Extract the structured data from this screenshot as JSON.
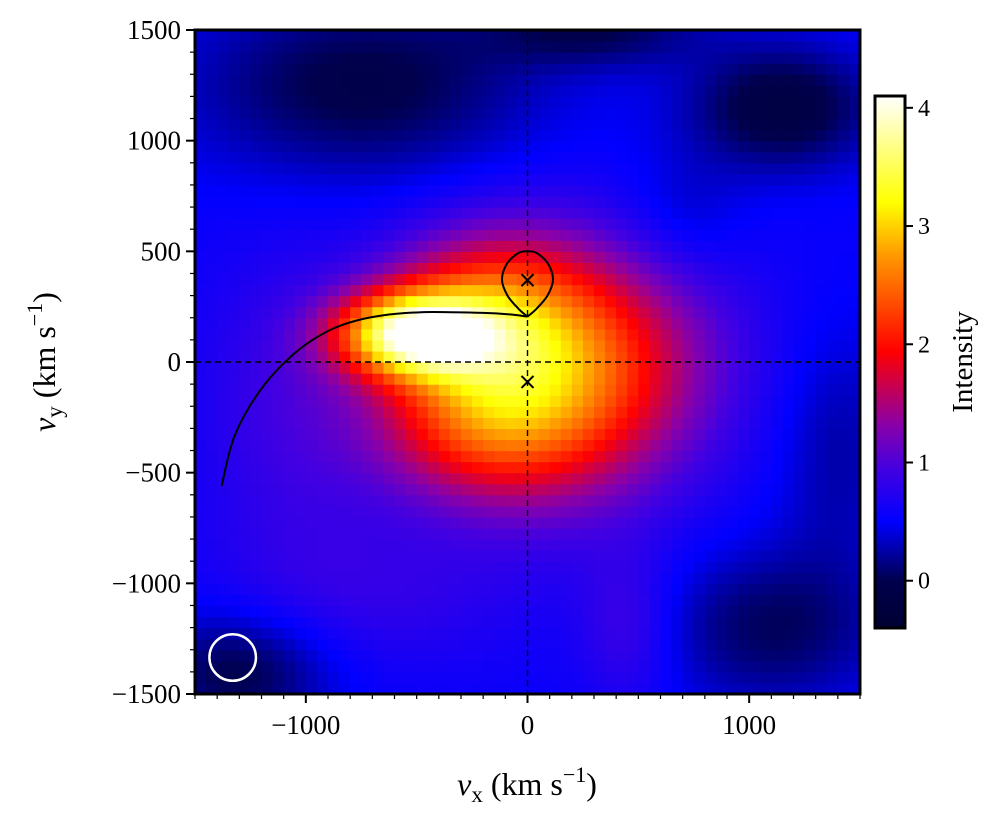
{
  "chart_data": {
    "type": "heatmap",
    "title": "",
    "x_axis": {
      "var": "v",
      "sub": "x",
      "unit": " (km s",
      "exp": "−1",
      "close": ")",
      "range": [
        -1500,
        1500
      ],
      "ticks": [
        -1000,
        0,
        1000
      ],
      "tick_labels": [
        "−1000",
        "0",
        "1000"
      ]
    },
    "y_axis": {
      "var": "v",
      "sub": "y",
      "unit": " (km s",
      "exp": "−1",
      "close": ")",
      "range": [
        -1500,
        1500
      ],
      "ticks": [
        -1500,
        -1000,
        -500,
        0,
        500,
        1000,
        1500
      ],
      "tick_labels": [
        "−1500",
        "−1000",
        "−500",
        "0",
        "500",
        "1000",
        "1500"
      ]
    },
    "colorbar": {
      "label": "Intensity",
      "range": [
        -0.4,
        4.1
      ],
      "ticks": [
        0,
        1,
        2,
        3,
        4
      ],
      "tick_labels": [
        "0",
        "1",
        "2",
        "3",
        "4"
      ],
      "colormap": [
        "#000033",
        "#0000ff",
        "#ff0000",
        "#ffff00",
        "#ffffff"
      ]
    },
    "grid": false,
    "reference_lines": {
      "vx": 0,
      "vy": 0
    },
    "markers": [
      {
        "symbol": "x",
        "vx": 0,
        "vy": 370
      },
      {
        "symbol": "x",
        "vx": 0,
        "vy": -90
      }
    ],
    "beam_circle": {
      "vx": -1330,
      "vy": -1335,
      "radius": 105,
      "color": "#ffffff"
    },
    "stream_trajectory": [
      [
        -1380,
        -560
      ],
      [
        -1320,
        -330
      ],
      [
        -1200,
        -120
      ],
      [
        -1050,
        40
      ],
      [
        -900,
        140
      ],
      [
        -760,
        190
      ],
      [
        -620,
        215
      ],
      [
        -480,
        225
      ],
      [
        -340,
        225
      ],
      [
        -200,
        222
      ],
      [
        -80,
        215
      ],
      [
        0,
        205
      ]
    ],
    "roche_lobe": [
      [
        0,
        205
      ],
      [
        40,
        240
      ],
      [
        90,
        300
      ],
      [
        115,
        370
      ],
      [
        95,
        440
      ],
      [
        45,
        490
      ],
      [
        0,
        500
      ],
      [
        -45,
        490
      ],
      [
        -95,
        440
      ],
      [
        -115,
        370
      ],
      [
        -90,
        300
      ],
      [
        -40,
        240
      ],
      [
        0,
        205
      ]
    ],
    "intensity_components": [
      {
        "vx": -520,
        "vy": 130,
        "sx": 230,
        "sy": 130,
        "amp": 2.8
      },
      {
        "vx": -200,
        "vy": 200,
        "sx": 300,
        "sy": 260,
        "amp": 1.2
      },
      {
        "vx": 100,
        "vy": -80,
        "sx": 430,
        "sy": 380,
        "amp": 1.7
      },
      {
        "vx": -250,
        "vy": -300,
        "sx": 320,
        "sy": 220,
        "amp": 0.8
      },
      {
        "vx": 300,
        "vy": 100,
        "sx": 450,
        "sy": 350,
        "amp": 0.4
      },
      {
        "vx": -1050,
        "vy": -200,
        "sx": 300,
        "sy": 500,
        "amp": 0.35
      },
      {
        "vx": 450,
        "vy": -1200,
        "sx": 150,
        "sy": 250,
        "amp": 0.35
      },
      {
        "vx": -700,
        "vy": -1050,
        "sx": 500,
        "sy": 250,
        "amp": 0.25
      }
    ],
    "intensity_baseline": 0.55,
    "dark_regions": [
      {
        "vx": -750,
        "vy": 1250,
        "sx": 550,
        "sy": 300,
        "amp": -0.6
      },
      {
        "vx": 1150,
        "vy": 1150,
        "sx": 300,
        "sy": 200,
        "amp": -0.7
      },
      {
        "vx": 300,
        "vy": 1500,
        "sx": 350,
        "sy": 120,
        "amp": -0.5
      },
      {
        "vx": -1300,
        "vy": -1400,
        "sx": 300,
        "sy": 200,
        "amp": -0.6
      },
      {
        "vx": 1100,
        "vy": -1200,
        "sx": 350,
        "sy": 250,
        "amp": -0.5
      },
      {
        "vx": 1400,
        "vy": -400,
        "sx": 200,
        "sy": 400,
        "amp": -0.3
      },
      {
        "vx": 700,
        "vy": 650,
        "sx": 200,
        "sy": 200,
        "amp": -0.25
      }
    ]
  }
}
